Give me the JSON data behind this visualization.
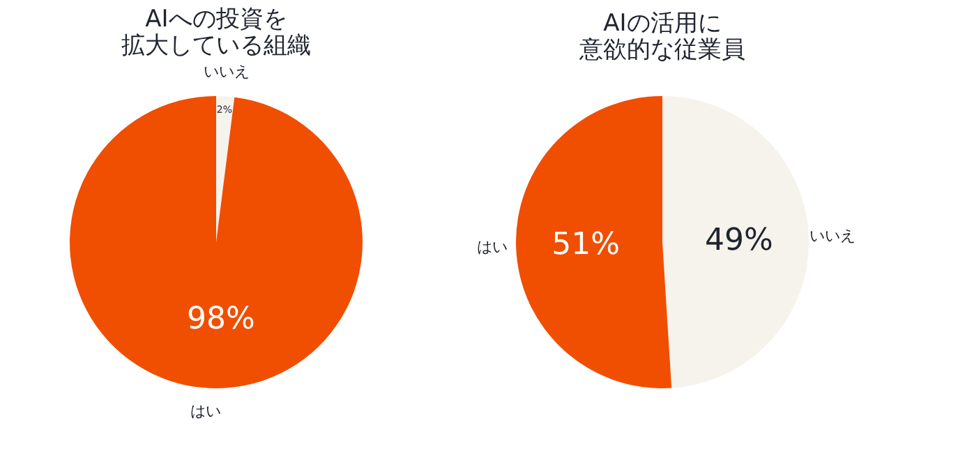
{
  "chart_data": [
    {
      "type": "pie",
      "title": "AIへの投資を拡大している組織",
      "categories": [
        "いいえ",
        "はい"
      ],
      "values": [
        2,
        98
      ],
      "colors": [
        "#f6f3ec",
        "#f04e00"
      ],
      "value_labels": [
        "2%",
        "98%"
      ],
      "legend": false
    },
    {
      "type": "pie",
      "title": "AIの活用に意欲的な従業員",
      "categories": [
        "いいえ",
        "はい"
      ],
      "values": [
        49,
        51
      ],
      "colors": [
        "#f6f3ec",
        "#f04e00"
      ],
      "value_labels": [
        "49%",
        "51%"
      ],
      "legend": false
    }
  ]
}
